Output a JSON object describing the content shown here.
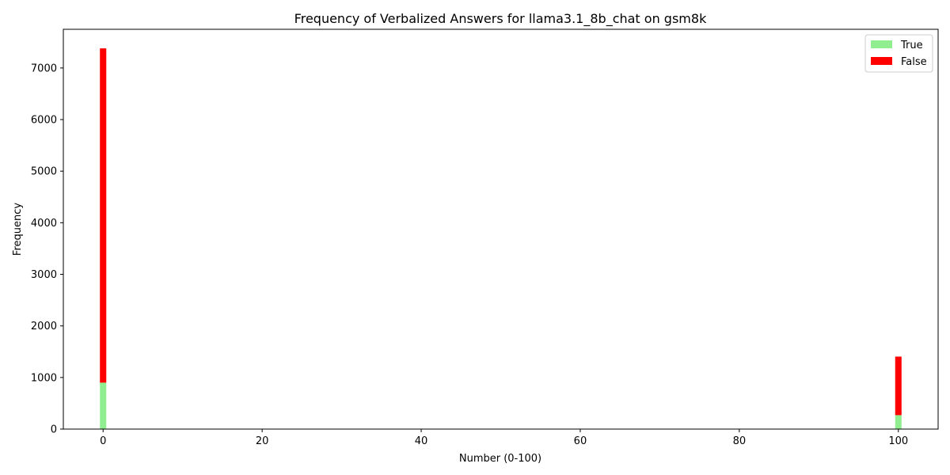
{
  "chart_data": {
    "type": "bar",
    "stacked": true,
    "title": "Frequency of Verbalized Answers for llama3.1_8b_chat on gsm8k",
    "xlabel": "Number (0-100)",
    "ylabel": "Frequency",
    "xlim": [
      -5,
      105
    ],
    "ylim": [
      0,
      7750
    ],
    "xticks": [
      0,
      20,
      40,
      60,
      80,
      100
    ],
    "yticks": [
      0,
      1000,
      2000,
      3000,
      4000,
      5000,
      6000,
      7000
    ],
    "bar_width": 0.8,
    "x": [
      0,
      100
    ],
    "series": [
      {
        "name": "True",
        "color": "#90ee90",
        "values": [
          900,
          270
        ]
      },
      {
        "name": "False",
        "color": "#ff0000",
        "values": [
          6480,
          1135
        ]
      }
    ],
    "legend_position": "top-right",
    "grid": false
  }
}
